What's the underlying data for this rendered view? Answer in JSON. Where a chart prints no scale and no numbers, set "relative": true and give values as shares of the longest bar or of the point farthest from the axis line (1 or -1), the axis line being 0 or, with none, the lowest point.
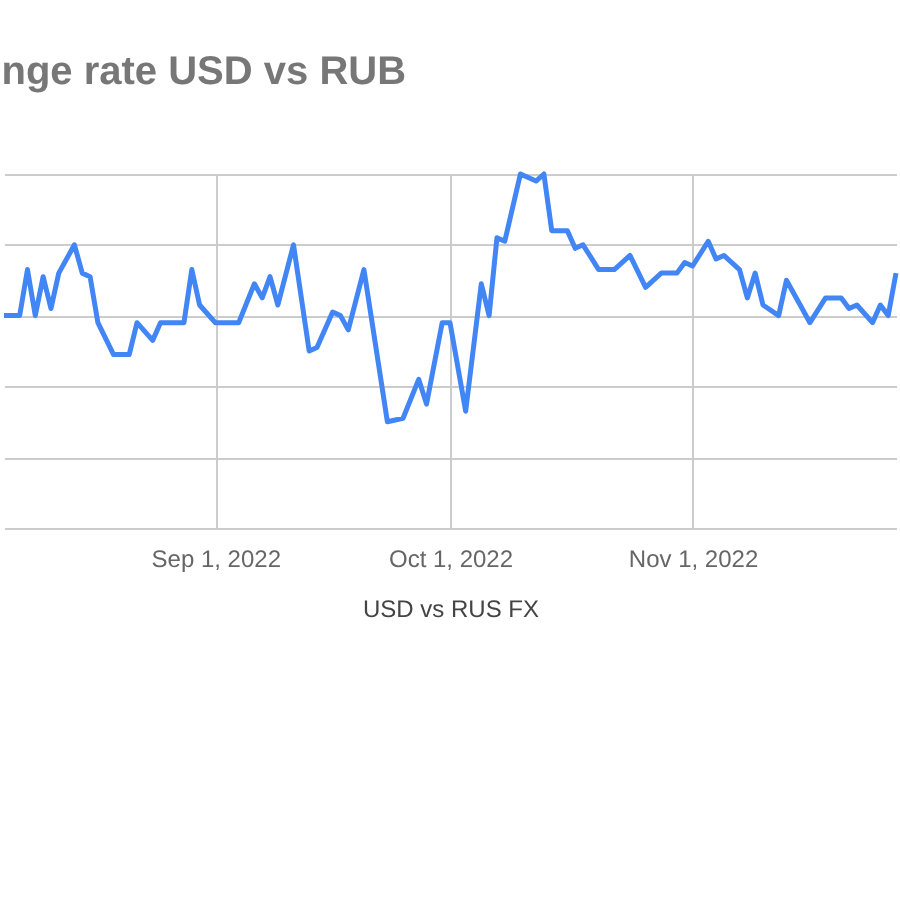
{
  "chart_data": {
    "type": "line",
    "title": "nge rate USD vs RUB",
    "xlabel": "USD vs RUS FX",
    "relative": true,
    "grid": true,
    "marker": "none",
    "line_style": "solid",
    "xlim": [
      "2022-08-05",
      "2022-11-27"
    ],
    "xticks": [
      {
        "value": "2022-09-01",
        "label": "Sep 1, 2022"
      },
      {
        "value": "2022-10-01",
        "label": "Oct 1, 2022"
      },
      {
        "value": "2022-11-01",
        "label": "Nov 1, 2022"
      }
    ],
    "x": [
      "2022-08-05",
      "2022-08-07",
      "2022-08-08",
      "2022-08-09",
      "2022-08-10",
      "2022-08-11",
      "2022-08-12",
      "2022-08-14",
      "2022-08-15",
      "2022-08-16",
      "2022-08-17",
      "2022-08-19",
      "2022-08-21",
      "2022-08-22",
      "2022-08-24",
      "2022-08-25",
      "2022-08-28",
      "2022-08-29",
      "2022-08-30",
      "2022-09-01",
      "2022-09-04",
      "2022-09-06",
      "2022-09-07",
      "2022-09-08",
      "2022-09-09",
      "2022-09-11",
      "2022-09-13",
      "2022-09-14",
      "2022-09-16",
      "2022-09-17",
      "2022-09-18",
      "2022-09-20",
      "2022-09-23",
      "2022-09-25",
      "2022-09-27",
      "2022-09-28",
      "2022-09-30",
      "2022-10-01",
      "2022-10-03",
      "2022-10-05",
      "2022-10-06",
      "2022-10-07",
      "2022-10-08",
      "2022-10-10",
      "2022-10-12",
      "2022-10-13",
      "2022-10-14",
      "2022-10-16",
      "2022-10-17",
      "2022-10-18",
      "2022-10-20",
      "2022-10-22",
      "2022-10-24",
      "2022-10-26",
      "2022-10-28",
      "2022-10-30",
      "2022-10-31",
      "2022-11-01",
      "2022-11-03",
      "2022-11-04",
      "2022-11-05",
      "2022-11-07",
      "2022-11-08",
      "2022-11-09",
      "2022-11-10",
      "2022-11-12",
      "2022-11-13",
      "2022-11-15",
      "2022-11-16",
      "2022-11-18",
      "2022-11-20",
      "2022-11-21",
      "2022-11-22",
      "2022-11-24",
      "2022-11-25",
      "2022-11-26",
      "2022-11-27"
    ],
    "series": [
      {
        "color": "#4285f4",
        "values": [
          0.6,
          0.6,
          0.73,
          0.6,
          0.71,
          0.62,
          0.72,
          0.8,
          0.72,
          0.71,
          0.58,
          0.49,
          0.49,
          0.58,
          0.53,
          0.58,
          0.58,
          0.73,
          0.63,
          0.58,
          0.58,
          0.69,
          0.65,
          0.71,
          0.63,
          0.8,
          0.5,
          0.51,
          0.61,
          0.6,
          0.56,
          0.73,
          0.3,
          0.31,
          0.42,
          0.35,
          0.58,
          0.58,
          0.33,
          0.69,
          0.6,
          0.82,
          0.81,
          1.0,
          0.98,
          1.0,
          0.84,
          0.84,
          0.79,
          0.8,
          0.73,
          0.73,
          0.77,
          0.68,
          0.72,
          0.72,
          0.75,
          0.74,
          0.81,
          0.76,
          0.77,
          0.73,
          0.65,
          0.72,
          0.63,
          0.6,
          0.7,
          0.62,
          0.58,
          0.65,
          0.65,
          0.62,
          0.63,
          0.58,
          0.63,
          0.6,
          0.72
        ]
      }
    ]
  }
}
